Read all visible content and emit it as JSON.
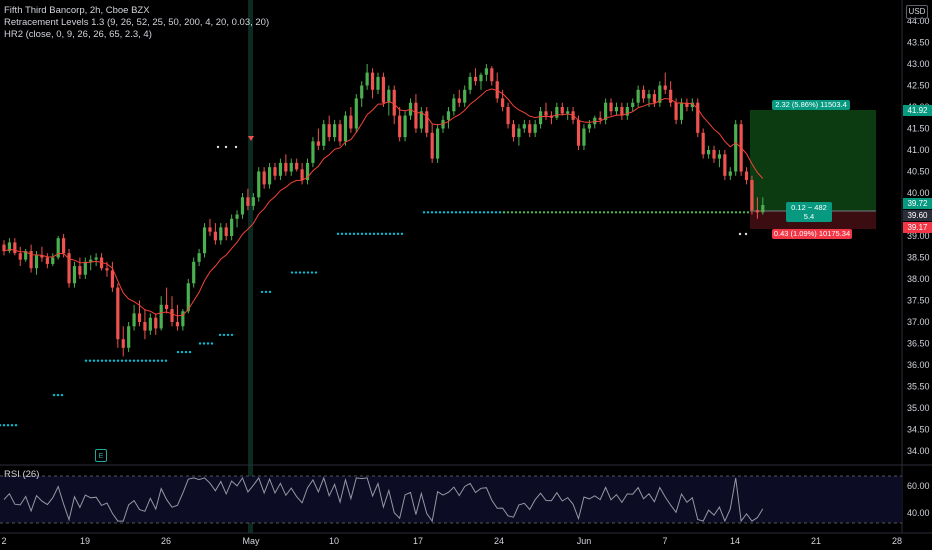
{
  "legend": {
    "title": "Fifth Third Bancorp, 2h, Cboe BZX",
    "indicator1": "Retracement Levels 1.3 (9, 26, 52, 25, 50, 200, 4, 20, 0.03, 20)",
    "indicator2": "HR2 (close, 0, 9, 26, 26, 65, 2.3, 4)"
  },
  "currency": "USD",
  "rsi_label": "RSI (26)",
  "earnings_marker": "E",
  "position": {
    "profit_label": "2.32 (5.86%) 11503.4",
    "center_line1": "0.12 ~ 482",
    "center_line2": "5.4",
    "loss_label": "0.43 (1.09%) 10175.34"
  },
  "price_badges": [
    {
      "id": "target",
      "text": "41.92",
      "color": "#089981"
    },
    {
      "id": "last",
      "text": "39.72",
      "color": "#089981"
    },
    {
      "id": "entry",
      "text": "39.60",
      "color": "#2a2e39"
    },
    {
      "id": "stop",
      "text": "39.17",
      "color": "#f23645"
    }
  ],
  "colors": {
    "up": "#4caf50",
    "down": "#ef5350",
    "dots": "#00bcd4",
    "green_dots": "#4caf50",
    "ma": "#f44336",
    "rsi_line": "#9598a1"
  },
  "chart_data": {
    "type": "candlestick",
    "title": "Fifth Third Bancorp, 2h, Cboe BZX",
    "price_axis": {
      "ticks": [
        34.0,
        34.5,
        35.0,
        35.5,
        36.0,
        36.5,
        37.0,
        37.5,
        38.0,
        38.5,
        39.0,
        39.5,
        40.0,
        40.5,
        41.0,
        41.5,
        42.0,
        42.5,
        43.0,
        43.5,
        44.0
      ],
      "labels": [
        "34.00",
        "34.50",
        "35.00",
        "35.50",
        "36.00",
        "36.50",
        "37.00",
        "37.50",
        "38.00",
        "38.50",
        "39.00",
        "39.50",
        "40.00",
        "40.50",
        "41.00",
        "41.50",
        "42.00",
        "42.50",
        "43.00",
        "43.50",
        "44.00"
      ],
      "range": [
        33.7,
        44.25
      ]
    },
    "time_axis": {
      "labels": [
        "2",
        "19",
        "26",
        "May",
        "10",
        "17",
        "24",
        "Jun",
        "7",
        "14",
        "21",
        "28"
      ]
    },
    "bars": [
      [
        38.8,
        38.9,
        38.55,
        38.65
      ],
      [
        38.65,
        38.95,
        38.6,
        38.85
      ],
      [
        38.85,
        38.95,
        38.55,
        38.6
      ],
      [
        38.6,
        38.75,
        38.3,
        38.45
      ],
      [
        38.45,
        38.7,
        38.4,
        38.65
      ],
      [
        38.65,
        38.8,
        38.15,
        38.25
      ],
      [
        38.25,
        38.65,
        38.1,
        38.55
      ],
      [
        38.55,
        38.75,
        38.4,
        38.5
      ],
      [
        38.5,
        38.6,
        38.25,
        38.35
      ],
      [
        38.35,
        38.6,
        38.3,
        38.5
      ],
      [
        38.5,
        39.0,
        38.45,
        38.95
      ],
      [
        38.95,
        39.05,
        38.5,
        38.6
      ],
      [
        38.6,
        38.7,
        37.8,
        37.9
      ],
      [
        37.9,
        38.4,
        37.8,
        38.3
      ],
      [
        38.3,
        38.5,
        38.0,
        38.1
      ],
      [
        38.1,
        38.5,
        38.0,
        38.4
      ],
      [
        38.4,
        38.55,
        38.2,
        38.45
      ],
      [
        38.45,
        38.6,
        38.3,
        38.5
      ],
      [
        38.5,
        38.6,
        38.2,
        38.25
      ],
      [
        38.25,
        38.4,
        38.05,
        38.2
      ],
      [
        38.2,
        38.4,
        37.7,
        37.8
      ],
      [
        37.8,
        37.9,
        36.4,
        36.6
      ],
      [
        36.6,
        36.9,
        36.2,
        36.4
      ],
      [
        36.4,
        37.0,
        36.3,
        36.9
      ],
      [
        36.9,
        37.4,
        36.8,
        37.2
      ],
      [
        37.2,
        37.5,
        36.9,
        37.0
      ],
      [
        37.0,
        37.3,
        36.6,
        36.8
      ],
      [
        36.8,
        37.2,
        36.7,
        37.1
      ],
      [
        37.1,
        37.2,
        36.7,
        36.85
      ],
      [
        36.85,
        37.6,
        36.8,
        37.4
      ],
      [
        37.4,
        37.8,
        37.2,
        37.3
      ],
      [
        37.3,
        37.6,
        36.9,
        37.0
      ],
      [
        37.0,
        37.4,
        36.8,
        36.9
      ],
      [
        36.9,
        37.3,
        36.8,
        37.25
      ],
      [
        37.25,
        38.0,
        37.2,
        37.9
      ],
      [
        37.9,
        38.5,
        37.8,
        38.4
      ],
      [
        38.4,
        38.7,
        38.3,
        38.6
      ],
      [
        38.6,
        39.3,
        38.5,
        39.2
      ],
      [
        39.2,
        39.4,
        39.0,
        39.1
      ],
      [
        39.1,
        39.3,
        38.8,
        38.9
      ],
      [
        38.9,
        39.3,
        38.8,
        39.2
      ],
      [
        39.2,
        39.3,
        38.9,
        39.0
      ],
      [
        39.0,
        39.5,
        38.9,
        39.4
      ],
      [
        39.4,
        39.6,
        39.2,
        39.5
      ],
      [
        39.5,
        40.0,
        39.4,
        39.9
      ],
      [
        39.9,
        40.1,
        39.6,
        39.7
      ],
      [
        39.7,
        40.0,
        39.6,
        39.9
      ],
      [
        39.9,
        40.6,
        39.8,
        40.5
      ],
      [
        40.5,
        40.6,
        40.1,
        40.2
      ],
      [
        40.2,
        40.7,
        40.1,
        40.6
      ],
      [
        40.6,
        40.7,
        40.3,
        40.4
      ],
      [
        40.4,
        40.8,
        40.3,
        40.7
      ],
      [
        40.7,
        40.9,
        40.4,
        40.5
      ],
      [
        40.5,
        40.8,
        40.4,
        40.7
      ],
      [
        40.7,
        40.8,
        40.5,
        40.55
      ],
      [
        40.55,
        40.7,
        40.2,
        40.3
      ],
      [
        40.3,
        40.8,
        40.2,
        40.7
      ],
      [
        40.7,
        41.3,
        40.6,
        41.2
      ],
      [
        41.2,
        41.5,
        41.0,
        41.1
      ],
      [
        41.1,
        41.7,
        41.0,
        41.6
      ],
      [
        41.6,
        41.8,
        41.2,
        41.3
      ],
      [
        41.3,
        41.7,
        41.2,
        41.6
      ],
      [
        41.6,
        41.7,
        41.1,
        41.2
      ],
      [
        41.2,
        41.9,
        41.1,
        41.8
      ],
      [
        41.8,
        42.0,
        41.4,
        41.5
      ],
      [
        41.5,
        42.3,
        41.4,
        42.2
      ],
      [
        42.2,
        42.6,
        42.0,
        42.5
      ],
      [
        42.5,
        43.0,
        42.4,
        42.8
      ],
      [
        42.8,
        42.9,
        42.2,
        42.4
      ],
      [
        42.4,
        42.8,
        42.3,
        42.7
      ],
      [
        42.7,
        42.8,
        42.0,
        42.1
      ],
      [
        42.1,
        42.5,
        41.8,
        42.4
      ],
      [
        42.4,
        42.5,
        41.6,
        41.8
      ],
      [
        41.8,
        42.0,
        41.2,
        41.3
      ],
      [
        41.3,
        41.9,
        41.2,
        41.8
      ],
      [
        41.8,
        42.2,
        41.7,
        42.1
      ],
      [
        42.1,
        42.3,
        41.4,
        41.5
      ],
      [
        41.5,
        42.0,
        41.4,
        41.9
      ],
      [
        41.9,
        42.0,
        41.3,
        41.4
      ],
      [
        41.4,
        41.6,
        40.7,
        40.8
      ],
      [
        40.8,
        41.6,
        40.7,
        41.5
      ],
      [
        41.5,
        41.8,
        41.4,
        41.7
      ],
      [
        41.7,
        42.0,
        41.5,
        41.9
      ],
      [
        41.9,
        42.3,
        41.8,
        42.2
      ],
      [
        42.2,
        42.4,
        42.0,
        42.1
      ],
      [
        42.1,
        42.5,
        42.0,
        42.4
      ],
      [
        42.4,
        42.8,
        42.3,
        42.7
      ],
      [
        42.7,
        42.9,
        42.5,
        42.6
      ],
      [
        42.6,
        42.8,
        42.4,
        42.75
      ],
      [
        42.75,
        43.0,
        42.6,
        42.9
      ],
      [
        42.9,
        42.95,
        42.5,
        42.6
      ],
      [
        42.6,
        42.8,
        42.1,
        42.2
      ],
      [
        42.2,
        42.4,
        41.9,
        42.0
      ],
      [
        42.0,
        42.1,
        41.5,
        41.6
      ],
      [
        41.6,
        41.7,
        41.2,
        41.3
      ],
      [
        41.3,
        41.6,
        41.1,
        41.5
      ],
      [
        41.5,
        41.7,
        41.4,
        41.6
      ],
      [
        41.6,
        41.7,
        41.3,
        41.4
      ],
      [
        41.4,
        41.7,
        41.3,
        41.6
      ],
      [
        41.6,
        42.0,
        41.5,
        41.9
      ],
      [
        41.9,
        42.1,
        41.7,
        41.8
      ],
      [
        41.8,
        41.9,
        41.6,
        41.75
      ],
      [
        41.75,
        42.1,
        41.7,
        42.0
      ],
      [
        42.0,
        42.1,
        41.8,
        41.85
      ],
      [
        41.85,
        42.0,
        41.7,
        41.9
      ],
      [
        41.9,
        42.0,
        41.6,
        41.7
      ],
      [
        41.7,
        41.8,
        41.0,
        41.1
      ],
      [
        41.1,
        41.6,
        41.0,
        41.5
      ],
      [
        41.5,
        41.7,
        41.4,
        41.6
      ],
      [
        41.6,
        41.8,
        41.5,
        41.75
      ],
      [
        41.75,
        41.9,
        41.6,
        41.7
      ],
      [
        41.7,
        42.2,
        41.6,
        42.1
      ],
      [
        42.1,
        42.2,
        41.8,
        41.9
      ],
      [
        41.9,
        42.1,
        41.8,
        42.0
      ],
      [
        42.0,
        42.1,
        41.7,
        41.8
      ],
      [
        41.8,
        42.1,
        41.7,
        42.0
      ],
      [
        42.0,
        42.2,
        41.9,
        42.1
      ],
      [
        42.1,
        42.5,
        42.0,
        42.4
      ],
      [
        42.4,
        42.5,
        42.1,
        42.2
      ],
      [
        42.2,
        42.4,
        42.0,
        42.3
      ],
      [
        42.3,
        42.4,
        42.0,
        42.1
      ],
      [
        42.1,
        42.6,
        42.0,
        42.5
      ],
      [
        42.5,
        42.8,
        42.3,
        42.4
      ],
      [
        42.4,
        42.6,
        42.0,
        42.1
      ],
      [
        42.1,
        42.2,
        41.6,
        41.7
      ],
      [
        41.7,
        42.2,
        41.6,
        42.1
      ],
      [
        42.1,
        42.2,
        41.9,
        42.0
      ],
      [
        42.0,
        42.2,
        41.9,
        42.1
      ],
      [
        42.1,
        42.2,
        41.3,
        41.4
      ],
      [
        41.4,
        41.5,
        40.8,
        40.9
      ],
      [
        40.9,
        41.1,
        40.8,
        41.0
      ],
      [
        41.0,
        41.1,
        40.7,
        40.8
      ],
      [
        40.8,
        41.0,
        40.6,
        40.9
      ],
      [
        40.9,
        41.0,
        40.3,
        40.4
      ],
      [
        40.4,
        40.6,
        40.3,
        40.5
      ],
      [
        40.5,
        41.7,
        40.4,
        41.6
      ],
      [
        41.6,
        41.7,
        40.4,
        40.5
      ],
      [
        40.5,
        40.6,
        40.2,
        40.3
      ],
      [
        40.3,
        40.4,
        39.5,
        39.6
      ],
      [
        39.6,
        39.9,
        39.4,
        39.55
      ],
      [
        39.55,
        39.9,
        39.5,
        39.72
      ]
    ],
    "ma_line": "red moving average following price",
    "dot_levels": [
      34.6,
      35.3,
      36.1,
      36.2,
      36.3,
      36.5,
      36.7,
      37.7,
      38.15,
      39.05,
      39.55
    ],
    "rsi": {
      "name": "RSI (26)",
      "ticks": [
        40.0,
        60.0
      ],
      "labels": [
        "40.00",
        "60.00"
      ],
      "upper_band": 70,
      "lower_band": 30
    }
  }
}
